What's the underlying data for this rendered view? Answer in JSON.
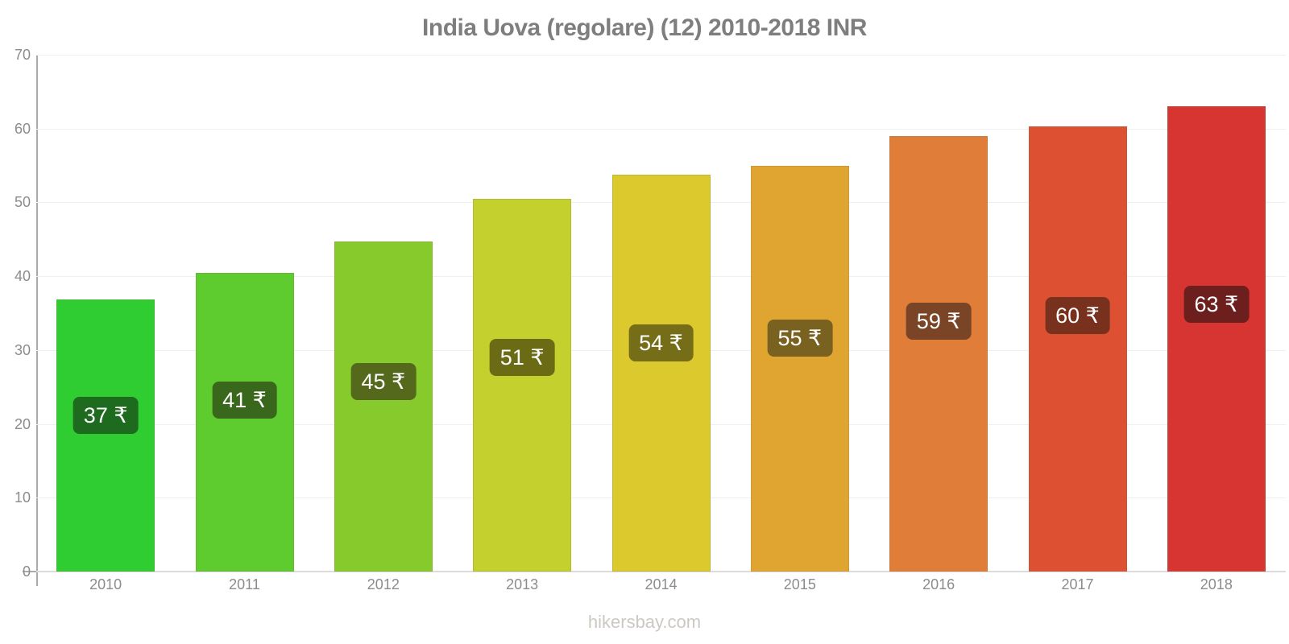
{
  "title": "India Uova (regolare) (12) 2010-2018 INR",
  "footer": "hikersbay.com",
  "chart_data": {
    "type": "bar",
    "title": "India Uova (regolare) (12) 2010-2018 INR",
    "categories": [
      "2010",
      "2011",
      "2012",
      "2013",
      "2014",
      "2015",
      "2016",
      "2017",
      "2018"
    ],
    "values": [
      37,
      41,
      45,
      51,
      54,
      55,
      59,
      60,
      63
    ],
    "values_precise": [
      36.8,
      40.4,
      44.7,
      50.5,
      53.8,
      55.0,
      59.0,
      60.3,
      63.0
    ],
    "value_labels": [
      "37 ₹",
      "41 ₹",
      "45 ₹",
      "51 ₹",
      "54 ₹",
      "55 ₹",
      "59 ₹",
      "60 ₹",
      "63 ₹"
    ],
    "currency_symbol": "₹",
    "bar_colors": [
      "#2fcd31",
      "#5ecb2f",
      "#86ca2c",
      "#c3d02e",
      "#dcc92e",
      "#e0a531",
      "#e07d38",
      "#dd5031",
      "#d63531"
    ],
    "badge_colors": [
      "#1e6a1f",
      "#39671b",
      "#54691b",
      "#6b6b16",
      "#756d18",
      "#79621f",
      "#7a4526",
      "#77311c",
      "#6d1f1e"
    ],
    "xlabel": "",
    "ylabel": "",
    "ylim": [
      0,
      70
    ],
    "yticks": [
      0,
      10,
      20,
      30,
      40,
      50,
      60,
      70
    ],
    "grid": true,
    "legend": "none",
    "axis_color": "#ababab",
    "label_color": "#8c8c8c",
    "title_color": "#7e7e7e"
  }
}
